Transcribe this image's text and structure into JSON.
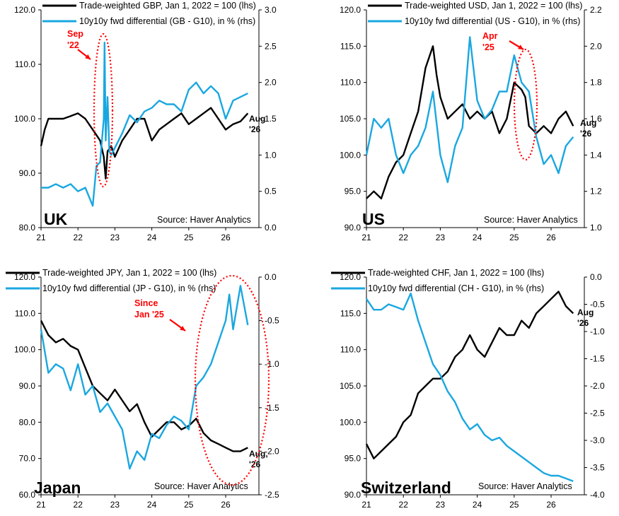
{
  "colors": {
    "lhs_series": "#000000",
    "rhs_series": "#1aa7e0",
    "annotation": "#ff0000",
    "axis": "#000000"
  },
  "chart_data": [
    {
      "id": "uk",
      "type": "line",
      "country": "UK",
      "source": "Source: Haver Analytics",
      "end_label": [
        "Aug",
        "'26"
      ],
      "annotation": [
        "Sep",
        "'22"
      ],
      "xlim": [
        21,
        26.9
      ],
      "x_ticks": [
        "21",
        "22",
        "23",
        "24",
        "25",
        "26"
      ],
      "ylim_left": [
        80,
        120
      ],
      "yticks_left": [
        "80.0",
        "90.0",
        "100.0",
        "110.0",
        "120.0"
      ],
      "ylim_right": [
        0,
        3
      ],
      "yticks_right": [
        "0.0",
        "0.5",
        "1.0",
        "1.5",
        "2.0",
        "2.5",
        "3.0"
      ],
      "series": [
        {
          "name": "Trade-weighted GBP, Jan 1, 2022 = 100 (lhs)",
          "axis": "left",
          "x": [
            21.0,
            21.1,
            21.2,
            21.4,
            21.6,
            21.8,
            22.0,
            22.2,
            22.4,
            22.5,
            22.6,
            22.7,
            22.75,
            22.8,
            22.9,
            23.0,
            23.2,
            23.4,
            23.6,
            23.8,
            24.0,
            24.2,
            24.4,
            24.6,
            24.8,
            25.0,
            25.2,
            25.4,
            25.6,
            25.8,
            26.0,
            26.2,
            26.4,
            26.6
          ],
          "y": [
            95,
            98,
            100,
            100,
            100,
            100.5,
            101,
            100,
            98,
            97,
            96,
            93,
            89,
            94,
            95,
            93,
            96,
            98,
            100,
            100,
            96,
            98,
            99,
            100,
            101,
            99,
            100,
            101,
            102,
            100,
            98,
            99,
            99.5,
            101
          ]
        },
        {
          "name": "10y10y fwd differential (GB - G10), in % (rhs)",
          "axis": "right",
          "x": [
            21.0,
            21.2,
            21.4,
            21.6,
            21.8,
            22.0,
            22.2,
            22.4,
            22.5,
            22.6,
            22.7,
            22.72,
            22.75,
            22.8,
            22.85,
            22.9,
            23.0,
            23.2,
            23.4,
            23.6,
            23.8,
            24.0,
            24.2,
            24.4,
            24.6,
            24.8,
            25.0,
            25.2,
            25.4,
            25.6,
            25.8,
            26.0,
            26.2,
            26.4,
            26.6
          ],
          "y": [
            0.55,
            0.55,
            0.6,
            0.55,
            0.6,
            0.5,
            0.55,
            0.3,
            0.85,
            0.9,
            1.5,
            2.55,
            1.2,
            1.8,
            1.05,
            1.0,
            1.1,
            1.3,
            1.55,
            1.45,
            1.6,
            1.65,
            1.75,
            1.7,
            1.7,
            1.6,
            1.9,
            2.0,
            1.85,
            1.95,
            1.85,
            1.5,
            1.75,
            1.8,
            1.85
          ]
        }
      ]
    },
    {
      "id": "us",
      "type": "line",
      "country": "US",
      "source": "Source: Haver Analytics",
      "end_label": [
        "Aug",
        "'26"
      ],
      "annotation": [
        "Apr",
        "'25"
      ],
      "xlim": [
        21,
        26.9
      ],
      "x_ticks": [
        "21",
        "22",
        "23",
        "24",
        "25",
        "26"
      ],
      "ylim_left": [
        90,
        120
      ],
      "yticks_left": [
        "90.0",
        "95.0",
        "100.0",
        "105.0",
        "110.0",
        "115.0",
        "120.0"
      ],
      "ylim_right": [
        1.0,
        2.2
      ],
      "yticks_right": [
        "1.0",
        "1.2",
        "1.4",
        "1.6",
        "1.8",
        "2.0",
        "2.2"
      ],
      "series": [
        {
          "name": "Trade-weighted USD, Jan 1, 2022 = 100 (lhs)",
          "axis": "left",
          "x": [
            21.0,
            21.2,
            21.4,
            21.6,
            21.8,
            22.0,
            22.2,
            22.4,
            22.6,
            22.8,
            22.9,
            23.0,
            23.2,
            23.4,
            23.6,
            23.8,
            24.0,
            24.2,
            24.4,
            24.6,
            24.8,
            25.0,
            25.2,
            25.3,
            25.4,
            25.6,
            25.8,
            26.0,
            26.2,
            26.4,
            26.6
          ],
          "y": [
            94,
            95,
            94,
            97,
            99,
            100,
            103,
            106,
            112,
            115,
            111,
            108,
            105,
            106,
            107,
            105,
            106,
            105,
            106,
            103,
            105,
            110,
            109,
            108,
            104,
            103,
            104,
            103,
            105,
            106,
            104
          ]
        },
        {
          "name": "10y10y fwd differential (US - G10), in % (rhs)",
          "axis": "right",
          "x": [
            21.0,
            21.2,
            21.4,
            21.6,
            21.8,
            22.0,
            22.2,
            22.4,
            22.6,
            22.8,
            23.0,
            23.2,
            23.4,
            23.6,
            23.8,
            24.0,
            24.2,
            24.4,
            24.6,
            24.8,
            25.0,
            25.2,
            25.4,
            25.6,
            25.8,
            26.0,
            26.2,
            26.4,
            26.6
          ],
          "y": [
            1.4,
            1.6,
            1.55,
            1.6,
            1.4,
            1.3,
            1.4,
            1.45,
            1.55,
            1.75,
            1.4,
            1.25,
            1.45,
            1.55,
            2.05,
            1.7,
            1.6,
            1.65,
            1.75,
            1.75,
            1.95,
            1.8,
            1.75,
            1.5,
            1.35,
            1.4,
            1.3,
            1.45,
            1.5
          ]
        }
      ]
    },
    {
      "id": "japan",
      "type": "line",
      "country": "Japan",
      "source": "Source: Haver Analytics",
      "end_label": [
        "Aug,",
        "'26"
      ],
      "annotation": [
        "Since",
        "Jan '25"
      ],
      "xlim": [
        21,
        26.9
      ],
      "x_ticks": [
        "21",
        "22",
        "23",
        "24",
        "25",
        "26"
      ],
      "ylim_left": [
        60,
        120
      ],
      "yticks_left": [
        "60.0",
        "70.0",
        "80.0",
        "90.0",
        "100.0",
        "110.0",
        "120.0"
      ],
      "ylim_right": [
        -2.5,
        0.0
      ],
      "yticks_right": [
        "-2.5",
        "-2.0",
        "-1.5",
        "-1.0",
        "-0.5",
        "0.0"
      ],
      "series": [
        {
          "name": "Trade-weighted JPY, Jan 1, 2022 = 100 (lhs)",
          "axis": "left",
          "x": [
            21.0,
            21.2,
            21.4,
            21.6,
            21.8,
            22.0,
            22.2,
            22.4,
            22.6,
            22.8,
            23.0,
            23.2,
            23.4,
            23.6,
            23.8,
            24.0,
            24.2,
            24.4,
            24.6,
            24.8,
            25.0,
            25.2,
            25.4,
            25.6,
            25.8,
            26.0,
            26.2,
            26.4,
            26.6
          ],
          "y": [
            108,
            104,
            102,
            103,
            101,
            100,
            95,
            90,
            88,
            86,
            89,
            86,
            83,
            85,
            80,
            76,
            78,
            80,
            80,
            78,
            79,
            81,
            77,
            75,
            74,
            73,
            72,
            72,
            73
          ]
        },
        {
          "name": "10y10y fwd differential (JP - G10), in % (rhs)",
          "axis": "right",
          "x": [
            21.0,
            21.2,
            21.4,
            21.6,
            21.8,
            22.0,
            22.2,
            22.4,
            22.6,
            22.8,
            23.0,
            23.2,
            23.4,
            23.6,
            23.8,
            24.0,
            24.2,
            24.4,
            24.6,
            24.8,
            25.0,
            25.2,
            25.4,
            25.6,
            25.8,
            26.0,
            26.1,
            26.2,
            26.4,
            26.6
          ],
          "y": [
            -0.6,
            -1.1,
            -1.0,
            -1.05,
            -1.3,
            -1.0,
            -1.35,
            -1.25,
            -1.55,
            -1.45,
            -1.6,
            -1.75,
            -2.2,
            -2.0,
            -2.1,
            -1.8,
            -1.85,
            -1.7,
            -1.6,
            -1.65,
            -1.75,
            -1.25,
            -1.15,
            -1.0,
            -0.75,
            -0.5,
            -0.2,
            -0.6,
            -0.1,
            -0.55
          ]
        }
      ]
    },
    {
      "id": "switzerland",
      "type": "line",
      "country": "Switzerland",
      "source": "Source: Haver Analytics",
      "end_label": [
        "Aug",
        "'26"
      ],
      "annotation": [],
      "xlim": [
        21,
        26.9
      ],
      "x_ticks": [
        "21",
        "22",
        "23",
        "24",
        "25",
        "26"
      ],
      "ylim_left": [
        90,
        120
      ],
      "yticks_left": [
        "90.0",
        "95.0",
        "100.0",
        "105.0",
        "110.0",
        "115.0",
        "120.0"
      ],
      "ylim_right": [
        -4.0,
        0.0
      ],
      "yticks_right": [
        "-4.0",
        "-3.5",
        "-3.0",
        "-2.5",
        "-2.0",
        "-1.5",
        "-1.0",
        "-0.5",
        "0.0"
      ],
      "series": [
        {
          "name": "Trade-weighted CHF, Jan 1, 2022 = 100 (lhs)",
          "axis": "left",
          "x": [
            21.0,
            21.2,
            21.4,
            21.6,
            21.8,
            22.0,
            22.2,
            22.4,
            22.6,
            22.8,
            23.0,
            23.2,
            23.4,
            23.6,
            23.8,
            24.0,
            24.2,
            24.4,
            24.6,
            24.8,
            25.0,
            25.2,
            25.4,
            25.6,
            25.8,
            26.0,
            26.2,
            26.4,
            26.6
          ],
          "y": [
            97,
            95,
            96,
            97,
            98,
            100,
            101,
            104,
            105,
            106,
            106,
            107,
            109,
            110,
            112,
            110,
            109,
            111,
            113,
            112,
            112,
            114,
            113,
            115,
            116,
            117,
            118,
            116,
            115
          ]
        },
        {
          "name": "10y10y fwd differential (CH - G10), in % (rhs)",
          "axis": "right",
          "x": [
            21.0,
            21.2,
            21.4,
            21.6,
            21.8,
            22.0,
            22.2,
            22.4,
            22.6,
            22.8,
            23.0,
            23.2,
            23.4,
            23.6,
            23.8,
            24.0,
            24.2,
            24.4,
            24.6,
            24.8,
            25.0,
            25.2,
            25.4,
            25.6,
            25.8,
            26.0,
            26.2,
            26.4,
            26.6
          ],
          "y": [
            -0.4,
            -0.6,
            -0.6,
            -0.5,
            -0.55,
            -0.6,
            -0.3,
            -0.8,
            -1.2,
            -1.6,
            -1.8,
            -2.1,
            -2.3,
            -2.6,
            -2.8,
            -2.7,
            -2.9,
            -3.0,
            -2.95,
            -3.1,
            -3.2,
            -3.3,
            -3.4,
            -3.5,
            -3.6,
            -3.65,
            -3.65,
            -3.7,
            -3.75
          ]
        }
      ]
    }
  ]
}
